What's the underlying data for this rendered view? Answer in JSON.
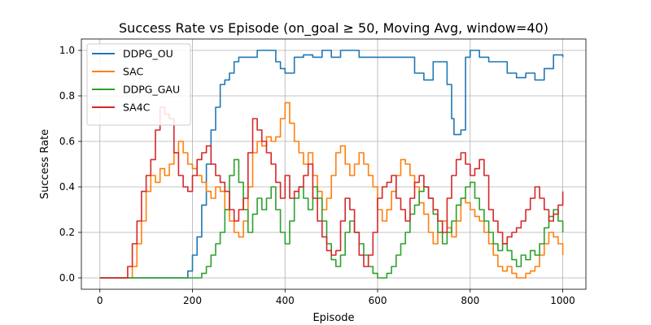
{
  "chart_data": {
    "type": "line",
    "title": "Success Rate vs Episode (on_goal ≥ 50, Moving Avg, window=40)",
    "xlabel": "Episode",
    "ylabel": "Success Rate",
    "xlim": [
      -40,
      1050
    ],
    "ylim": [
      -0.05,
      1.05
    ],
    "xticks": [
      0,
      200,
      400,
      600,
      800,
      1000
    ],
    "yticks": [
      0.0,
      0.2,
      0.4,
      0.6,
      0.8,
      1.0
    ],
    "xtick_labels": [
      "0",
      "200",
      "400",
      "600",
      "800",
      "1000"
    ],
    "ytick_labels": [
      "0.0",
      "0.2",
      "0.4",
      "0.6",
      "0.8",
      "1.0"
    ],
    "grid": true,
    "legend_position": "top-left",
    "series": [
      {
        "name": "DDPG_OU",
        "color": "#1f77b4",
        "x": [
          0,
          185,
          190,
          200,
          210,
          220,
          230,
          240,
          250,
          260,
          270,
          280,
          290,
          300,
          320,
          340,
          360,
          380,
          390,
          400,
          420,
          440,
          460,
          480,
          500,
          520,
          540,
          560,
          600,
          620,
          640,
          660,
          680,
          700,
          720,
          740,
          750,
          760,
          765,
          770,
          780,
          790,
          800,
          820,
          840,
          860,
          880,
          900,
          920,
          940,
          960,
          980,
          1000
        ],
        "y": [
          0.0,
          0.0,
          0.03,
          0.1,
          0.18,
          0.32,
          0.5,
          0.65,
          0.75,
          0.85,
          0.87,
          0.9,
          0.95,
          0.97,
          0.97,
          1.0,
          1.0,
          0.95,
          0.92,
          0.9,
          0.97,
          0.98,
          0.97,
          1.0,
          0.97,
          1.0,
          1.0,
          0.97,
          0.97,
          0.97,
          0.97,
          0.97,
          0.9,
          0.87,
          0.95,
          0.95,
          0.85,
          0.7,
          0.63,
          0.63,
          0.65,
          0.97,
          1.0,
          0.97,
          0.95,
          0.95,
          0.9,
          0.88,
          0.9,
          0.87,
          0.92,
          0.98,
          0.97
        ]
      },
      {
        "name": "SAC",
        "color": "#ff7f0e",
        "x": [
          0,
          55,
          70,
          80,
          90,
          100,
          110,
          120,
          130,
          140,
          150,
          160,
          170,
          180,
          190,
          200,
          210,
          220,
          230,
          240,
          250,
          260,
          270,
          280,
          290,
          300,
          310,
          320,
          330,
          340,
          350,
          360,
          370,
          380,
          390,
          400,
          410,
          420,
          430,
          440,
          450,
          460,
          470,
          480,
          490,
          500,
          510,
          520,
          530,
          540,
          550,
          560,
          570,
          580,
          590,
          600,
          610,
          620,
          630,
          640,
          650,
          660,
          670,
          680,
          690,
          700,
          710,
          720,
          730,
          740,
          750,
          760,
          770,
          780,
          790,
          800,
          810,
          820,
          830,
          840,
          850,
          860,
          870,
          880,
          890,
          900,
          910,
          920,
          930,
          940,
          950,
          960,
          970,
          980,
          990,
          1000
        ],
        "y": [
          0.0,
          0.0,
          0.05,
          0.15,
          0.25,
          0.38,
          0.45,
          0.42,
          0.48,
          0.45,
          0.5,
          0.55,
          0.6,
          0.55,
          0.5,
          0.48,
          0.45,
          0.42,
          0.38,
          0.35,
          0.4,
          0.38,
          0.3,
          0.25,
          0.2,
          0.18,
          0.25,
          0.4,
          0.55,
          0.6,
          0.58,
          0.62,
          0.6,
          0.62,
          0.7,
          0.77,
          0.68,
          0.6,
          0.55,
          0.5,
          0.55,
          0.45,
          0.38,
          0.3,
          0.35,
          0.45,
          0.55,
          0.58,
          0.5,
          0.45,
          0.5,
          0.55,
          0.5,
          0.45,
          0.4,
          0.3,
          0.25,
          0.3,
          0.38,
          0.45,
          0.52,
          0.5,
          0.45,
          0.4,
          0.33,
          0.28,
          0.2,
          0.15,
          0.2,
          0.25,
          0.22,
          0.18,
          0.25,
          0.35,
          0.33,
          0.3,
          0.27,
          0.25,
          0.2,
          0.15,
          0.1,
          0.05,
          0.03,
          0.05,
          0.02,
          0.0,
          0.0,
          0.02,
          0.03,
          0.05,
          0.1,
          0.15,
          0.2,
          0.18,
          0.15,
          0.1
        ]
      },
      {
        "name": "DDPG_GAU",
        "color": "#2ca02c",
        "x": [
          0,
          210,
          220,
          230,
          240,
          250,
          260,
          270,
          280,
          290,
          300,
          310,
          320,
          330,
          340,
          350,
          360,
          370,
          380,
          390,
          400,
          410,
          420,
          430,
          440,
          450,
          460,
          470,
          480,
          490,
          500,
          510,
          520,
          530,
          540,
          550,
          560,
          570,
          580,
          590,
          600,
          610,
          620,
          630,
          640,
          650,
          660,
          670,
          680,
          690,
          700,
          710,
          720,
          730,
          740,
          750,
          760,
          770,
          780,
          790,
          800,
          810,
          820,
          830,
          840,
          850,
          860,
          870,
          880,
          890,
          900,
          910,
          920,
          930,
          940,
          950,
          960,
          970,
          980,
          990,
          1000
        ],
        "y": [
          0.0,
          0.0,
          0.02,
          0.05,
          0.1,
          0.15,
          0.2,
          0.3,
          0.45,
          0.52,
          0.42,
          0.3,
          0.2,
          0.28,
          0.35,
          0.3,
          0.35,
          0.4,
          0.3,
          0.2,
          0.15,
          0.25,
          0.35,
          0.4,
          0.35,
          0.3,
          0.4,
          0.35,
          0.25,
          0.15,
          0.08,
          0.05,
          0.1,
          0.2,
          0.25,
          0.2,
          0.15,
          0.1,
          0.05,
          0.02,
          0.0,
          0.0,
          0.02,
          0.05,
          0.1,
          0.15,
          0.2,
          0.28,
          0.32,
          0.38,
          0.4,
          0.35,
          0.28,
          0.2,
          0.15,
          0.2,
          0.25,
          0.32,
          0.35,
          0.4,
          0.42,
          0.35,
          0.3,
          0.25,
          0.2,
          0.15,
          0.12,
          0.15,
          0.12,
          0.08,
          0.05,
          0.1,
          0.08,
          0.12,
          0.1,
          0.15,
          0.22,
          0.27,
          0.3,
          0.25,
          0.2
        ]
      },
      {
        "name": "SA4C",
        "color": "#d62728",
        "x": [
          0,
          50,
          60,
          70,
          80,
          90,
          100,
          110,
          120,
          130,
          140,
          150,
          160,
          170,
          180,
          190,
          200,
          210,
          220,
          230,
          240,
          250,
          260,
          270,
          280,
          290,
          300,
          310,
          320,
          330,
          340,
          350,
          360,
          370,
          380,
          390,
          400,
          410,
          420,
          430,
          440,
          450,
          460,
          470,
          480,
          490,
          500,
          510,
          520,
          530,
          540,
          550,
          560,
          570,
          580,
          590,
          600,
          610,
          620,
          630,
          640,
          650,
          660,
          670,
          680,
          690,
          700,
          710,
          720,
          730,
          740,
          750,
          760,
          770,
          780,
          790,
          800,
          810,
          820,
          830,
          840,
          850,
          860,
          870,
          880,
          890,
          900,
          910,
          920,
          930,
          940,
          950,
          960,
          970,
          980,
          990,
          1000
        ],
        "y": [
          0.0,
          0.0,
          0.05,
          0.15,
          0.25,
          0.38,
          0.45,
          0.52,
          0.65,
          0.75,
          0.72,
          0.7,
          0.55,
          0.45,
          0.4,
          0.38,
          0.45,
          0.52,
          0.55,
          0.58,
          0.5,
          0.45,
          0.42,
          0.38,
          0.3,
          0.25,
          0.3,
          0.35,
          0.55,
          0.7,
          0.65,
          0.6,
          0.55,
          0.5,
          0.42,
          0.35,
          0.45,
          0.35,
          0.38,
          0.4,
          0.45,
          0.5,
          0.35,
          0.25,
          0.18,
          0.12,
          0.1,
          0.12,
          0.25,
          0.35,
          0.3,
          0.2,
          0.1,
          0.05,
          0.1,
          0.2,
          0.35,
          0.4,
          0.42,
          0.45,
          0.35,
          0.3,
          0.25,
          0.35,
          0.42,
          0.45,
          0.4,
          0.35,
          0.3,
          0.25,
          0.2,
          0.35,
          0.45,
          0.52,
          0.55,
          0.5,
          0.45,
          0.48,
          0.52,
          0.45,
          0.3,
          0.25,
          0.2,
          0.15,
          0.18,
          0.2,
          0.22,
          0.25,
          0.3,
          0.35,
          0.4,
          0.35,
          0.3,
          0.25,
          0.28,
          0.32,
          0.38
        ]
      }
    ]
  }
}
